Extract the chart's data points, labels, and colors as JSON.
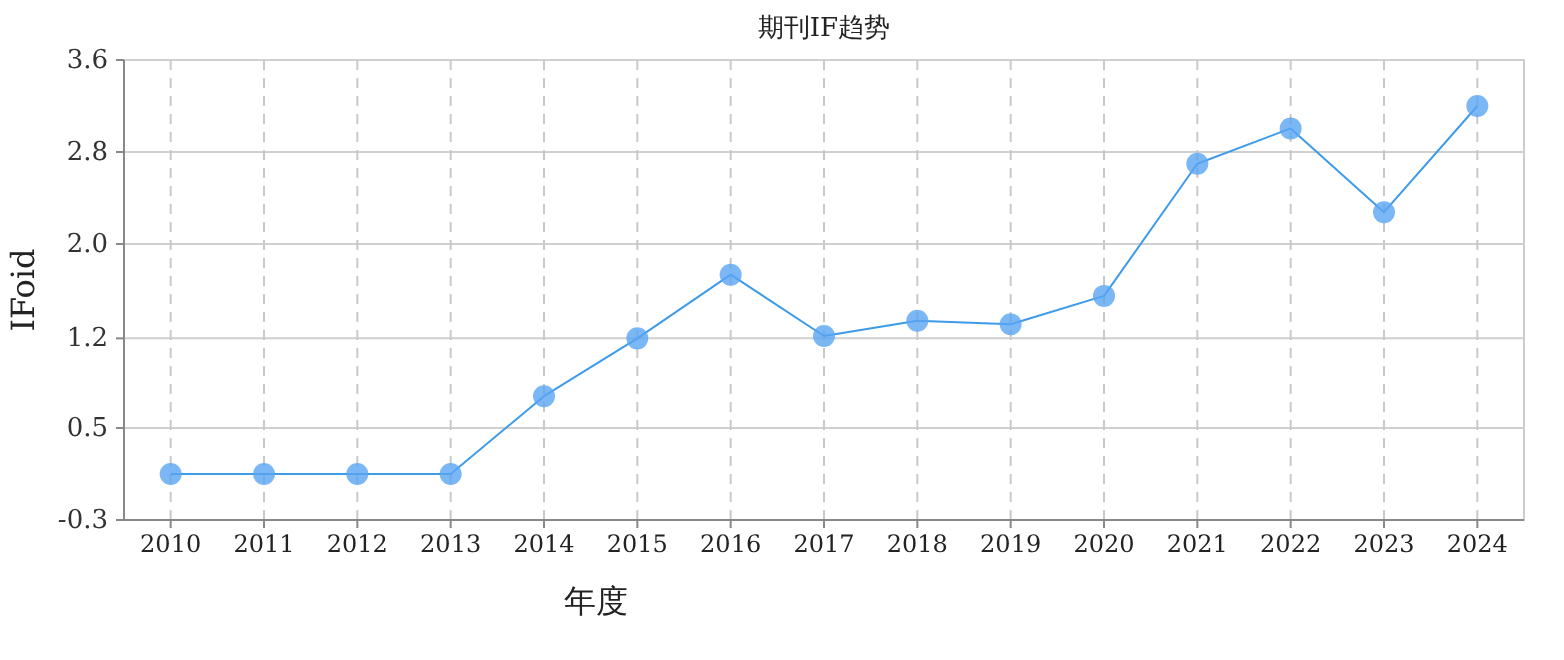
{
  "chart_data": {
    "type": "line",
    "title": "期刊IF趋势",
    "xlabel": "年度",
    "ylabel": "IFoid",
    "categories": [
      "2010",
      "2011",
      "2012",
      "2013",
      "2014",
      "2015",
      "2016",
      "2017",
      "2018",
      "2019",
      "2020",
      "2021",
      "2022",
      "2023",
      "2024"
    ],
    "series": [
      {
        "color": "#3d9be9",
        "values": [
          0.09,
          0.09,
          0.09,
          0.09,
          0.75,
          1.24,
          1.78,
          1.26,
          1.39,
          1.36,
          1.6,
          2.72,
          3.02,
          2.31,
          3.21
        ]
      }
    ],
    "ylim": [
      -0.3,
      3.6
    ],
    "yticks": [
      -0.3,
      {
        "value": 0.48,
        "label": "0.5"
      },
      {
        "value": 1.24,
        "label": "1.2"
      },
      {
        "value": 2.04,
        "label": "2.0"
      },
      {
        "value": 2.82,
        "label": "2.8"
      },
      3.6
    ],
    "grid": true,
    "marker": "circle"
  }
}
